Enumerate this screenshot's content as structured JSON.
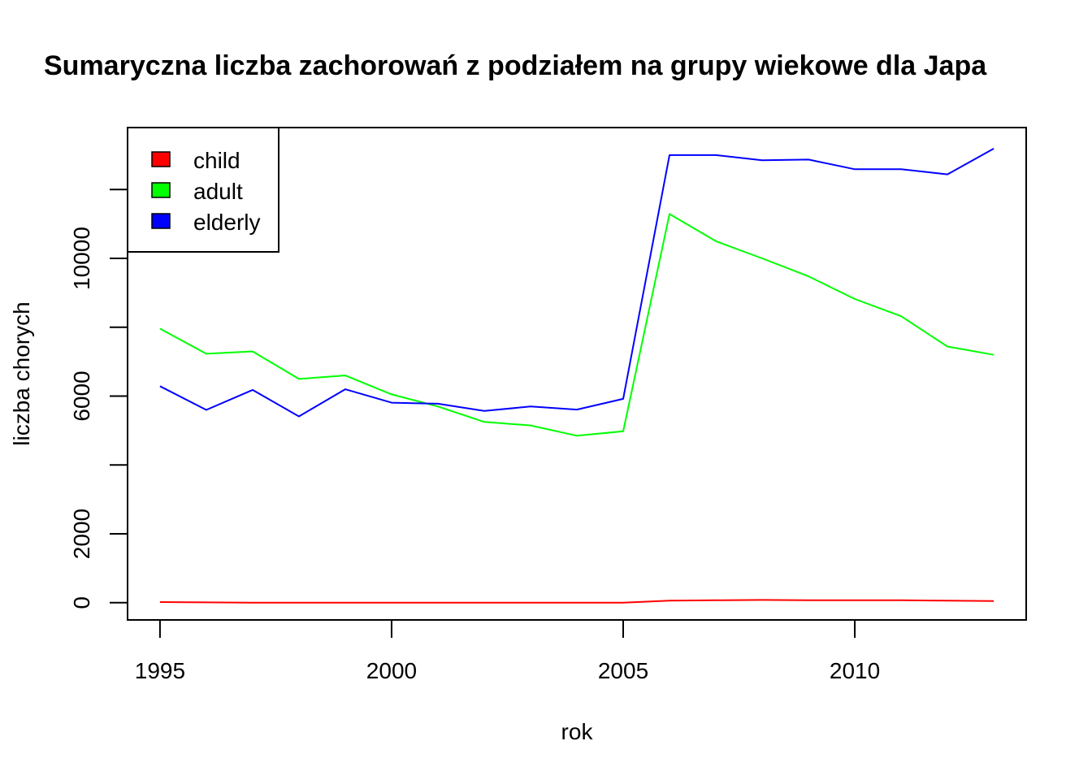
{
  "chart_data": {
    "type": "line",
    "title": "Sumaryczna liczba zachorowań z podziałem na grupy wiekowe dla Japa",
    "xlabel": "rok",
    "ylabel": "liczba chorych",
    "xlim": [
      1994.3,
      2013.7
    ],
    "ylim": [
      -500,
      13800
    ],
    "xticks": [
      1995,
      2000,
      2005,
      2010
    ],
    "yticks": [
      0,
      2000,
      4000,
      6000,
      8000,
      10000,
      12000
    ],
    "ytick_labels": [
      "0",
      "2000",
      "",
      "6000",
      "",
      "10000",
      ""
    ],
    "grid": false,
    "legend_position": "top-left",
    "x": [
      1995,
      1996,
      1997,
      1998,
      1999,
      2000,
      2001,
      2002,
      2003,
      2004,
      2005,
      2006,
      2007,
      2008,
      2009,
      2010,
      2011,
      2012,
      2013
    ],
    "series": [
      {
        "name": "child",
        "color": "#ff0000",
        "values": [
          20,
          10,
          0,
          0,
          0,
          0,
          0,
          0,
          0,
          0,
          0,
          60,
          70,
          80,
          70,
          70,
          70,
          60,
          50
        ]
      },
      {
        "name": "adult",
        "color": "#00ff00",
        "values": [
          7960,
          7230,
          7300,
          6500,
          6600,
          6050,
          5700,
          5250,
          5150,
          4850,
          4980,
          11290,
          10500,
          10000,
          9480,
          8820,
          8320,
          7440,
          7200
        ]
      },
      {
        "name": "elderly",
        "color": "#0000ff",
        "values": [
          6290,
          5600,
          6180,
          5410,
          6200,
          5810,
          5780,
          5570,
          5700,
          5610,
          5920,
          13000,
          13000,
          12850,
          12870,
          12590,
          12590,
          12440,
          13190
        ]
      }
    ]
  }
}
